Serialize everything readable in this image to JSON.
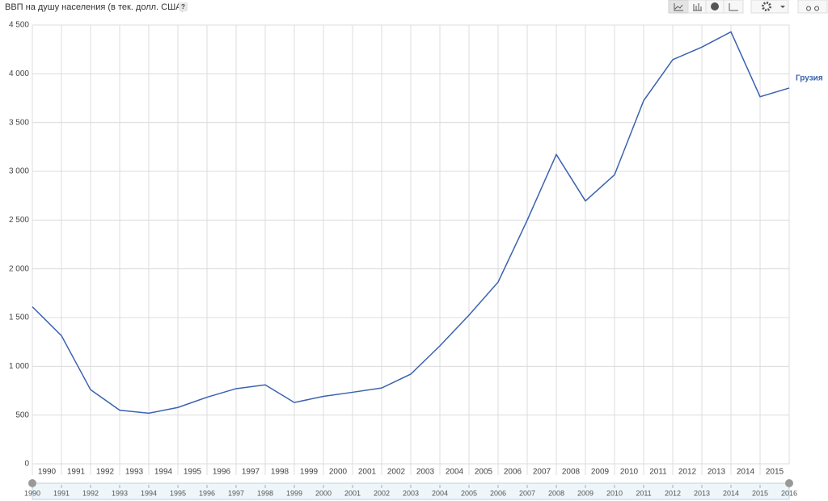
{
  "chart_data": {
    "type": "line",
    "title": "ВВП на душу населения (в тек. долл. США)",
    "help": "?",
    "x": [
      1990,
      1991,
      1992,
      1993,
      1994,
      1995,
      1996,
      1997,
      1998,
      1999,
      2000,
      2001,
      2002,
      2003,
      2004,
      2005,
      2006,
      2007,
      2008,
      2009,
      2010,
      2011,
      2012,
      2013,
      2014,
      2015,
      2016
    ],
    "series": [
      {
        "name": "Грузия",
        "color": "#3a62b0",
        "values": [
          1611,
          1314,
          760,
          550,
          519,
          578,
          683,
          771,
          810,
          629,
          692,
          734,
          778,
          920,
          1210,
          1525,
          1864,
          2498,
          3172,
          2696,
          2964,
          3725,
          4145,
          4274,
          4430,
          3765,
          3854
        ]
      }
    ],
    "xlim": [
      1990,
      2016
    ],
    "xticks": [
      1990,
      1991,
      1992,
      1993,
      1994,
      1995,
      1996,
      1997,
      1998,
      1999,
      2000,
      2001,
      2002,
      2003,
      2004,
      2005,
      2006,
      2007,
      2008,
      2009,
      2010,
      2011,
      2012,
      2013,
      2014,
      2015
    ],
    "ylim": [
      0,
      4500
    ],
    "yticks": [
      0,
      500,
      {
        "value": 1000,
        "label": "1 000"
      },
      {
        "value": 1500,
        "label": "1 500"
      },
      {
        "value": 2000,
        "label": "2 000"
      },
      {
        "value": 2500,
        "label": "2 500"
      },
      {
        "value": 3000,
        "label": "3 000"
      },
      {
        "value": 3500,
        "label": "3 500"
      },
      {
        "value": 4000,
        "label": "4 000"
      },
      {
        "value": 4500,
        "label": "4 500"
      }
    ],
    "slider_ticks": [
      1990,
      1991,
      1992,
      1993,
      1994,
      1995,
      1996,
      1997,
      1998,
      1999,
      2000,
      2001,
      2002,
      2003,
      2004,
      2005,
      2006,
      2007,
      2008,
      2009,
      2010,
      2011,
      2012,
      2013,
      2014,
      2015,
      2016
    ],
    "grid": true
  }
}
